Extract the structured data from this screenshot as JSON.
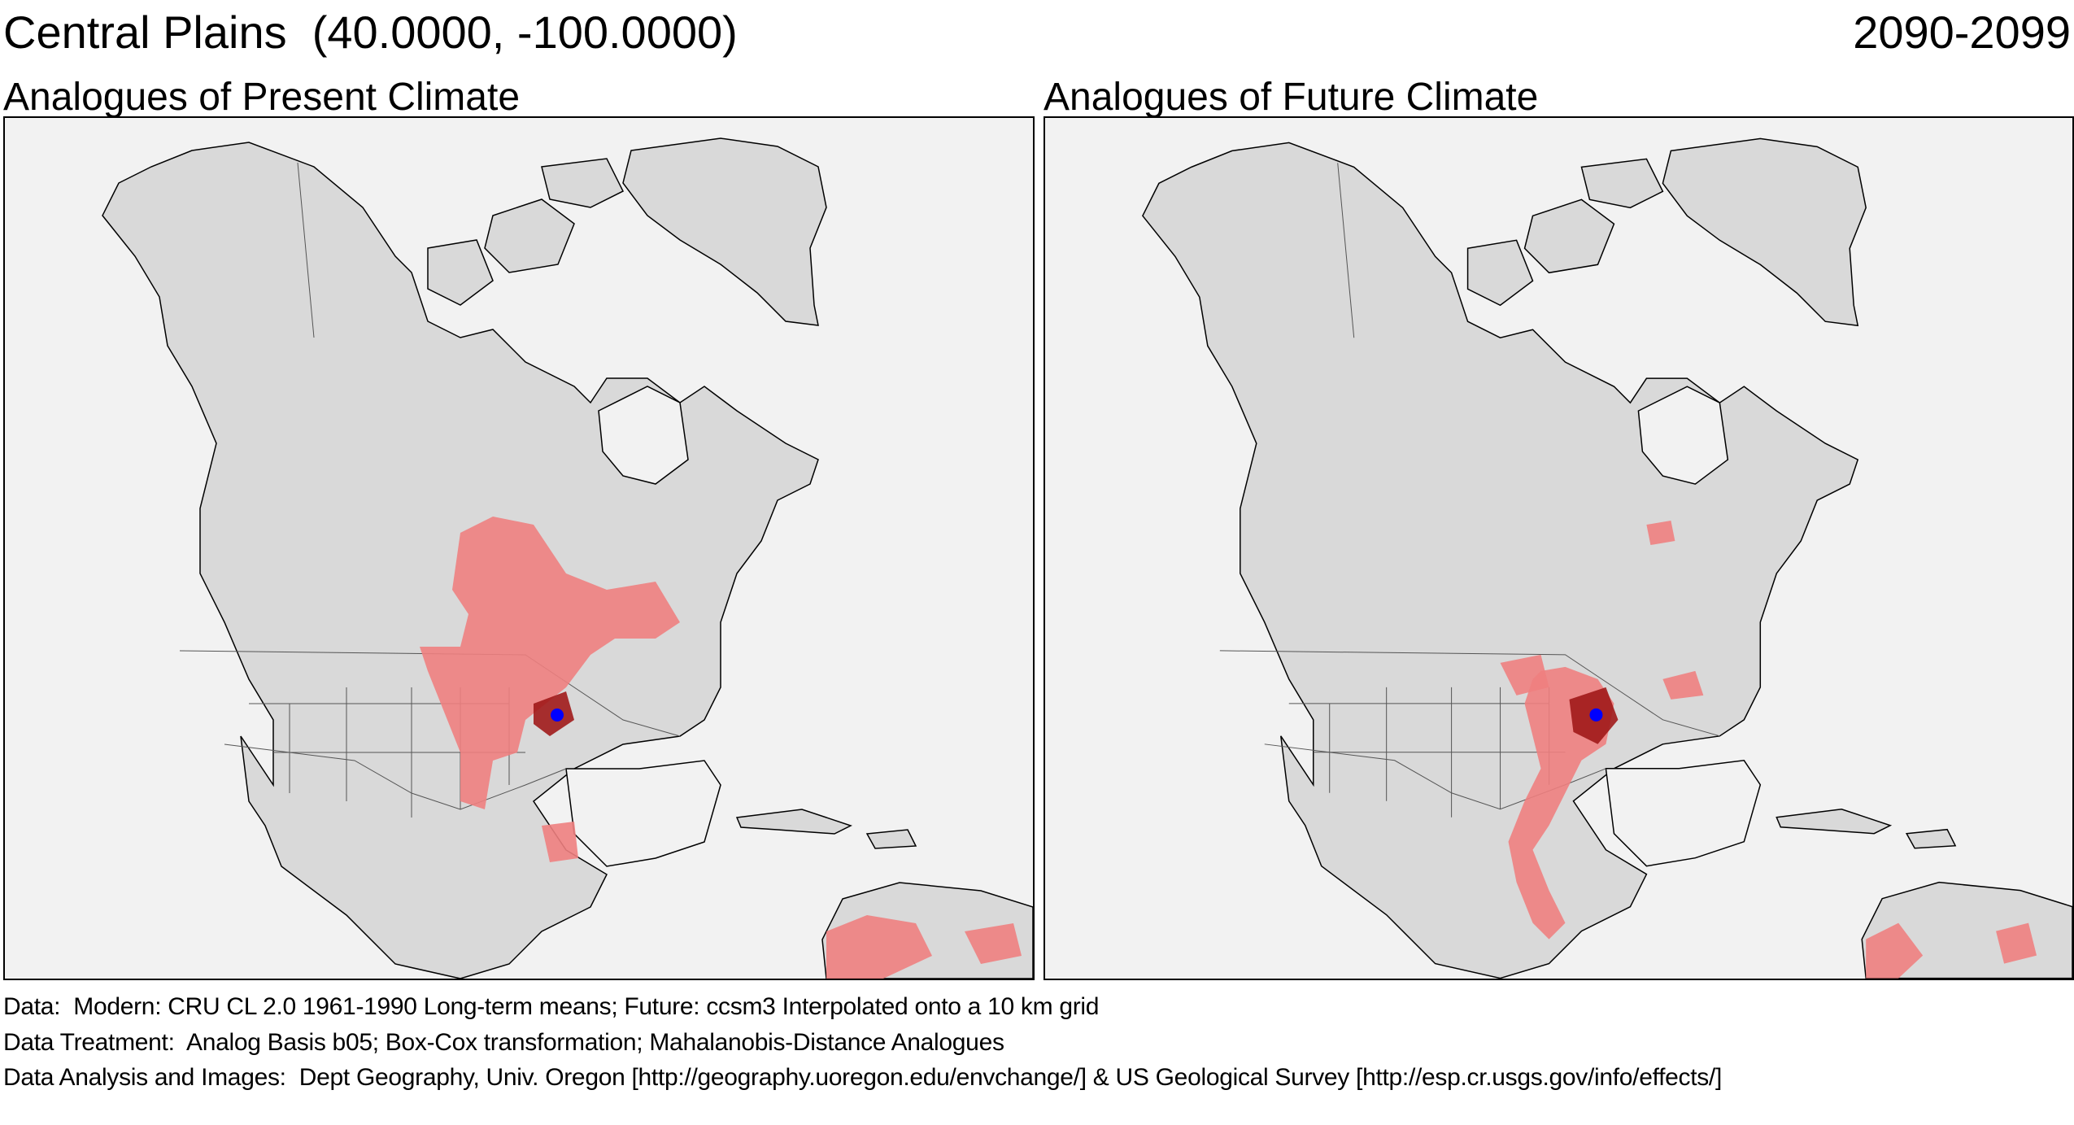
{
  "header": {
    "location": "Central Plains  (40.0000, -100.0000)",
    "period": "2090-2099"
  },
  "panels": [
    {
      "title": "Analogues of Present Climate",
      "scenario": "present"
    },
    {
      "title": "Analogues of Future Climate",
      "scenario": "future"
    }
  ],
  "map_style": {
    "ocean_color": "#f2f2f2",
    "land_color": "#d9d9d9",
    "boundary_color": "#000000",
    "analogue_light_color": "#ee8080",
    "analogue_dark_color": "#a01a1a",
    "site_marker_color": "#0000ff",
    "site_marker_icon": "blue-dot"
  },
  "footer": {
    "data_line": "Data:  Modern: CRU CL 2.0 1961-1990 Long-term means; Future: ccsm3 Interpolated onto a 10 km grid",
    "treatment_line": "Data Treatment:  Analog Basis b05; Box-Cox transformation; Mahalanobis-Distance Analogues",
    "analysis_line": "Data Analysis and Images:  Dept Geography, Univ. Oregon [http://geography.uoregon.edu/envchange/] & US Geological Survey [http://esp.cr.usgs.gov/info/effects/]"
  }
}
